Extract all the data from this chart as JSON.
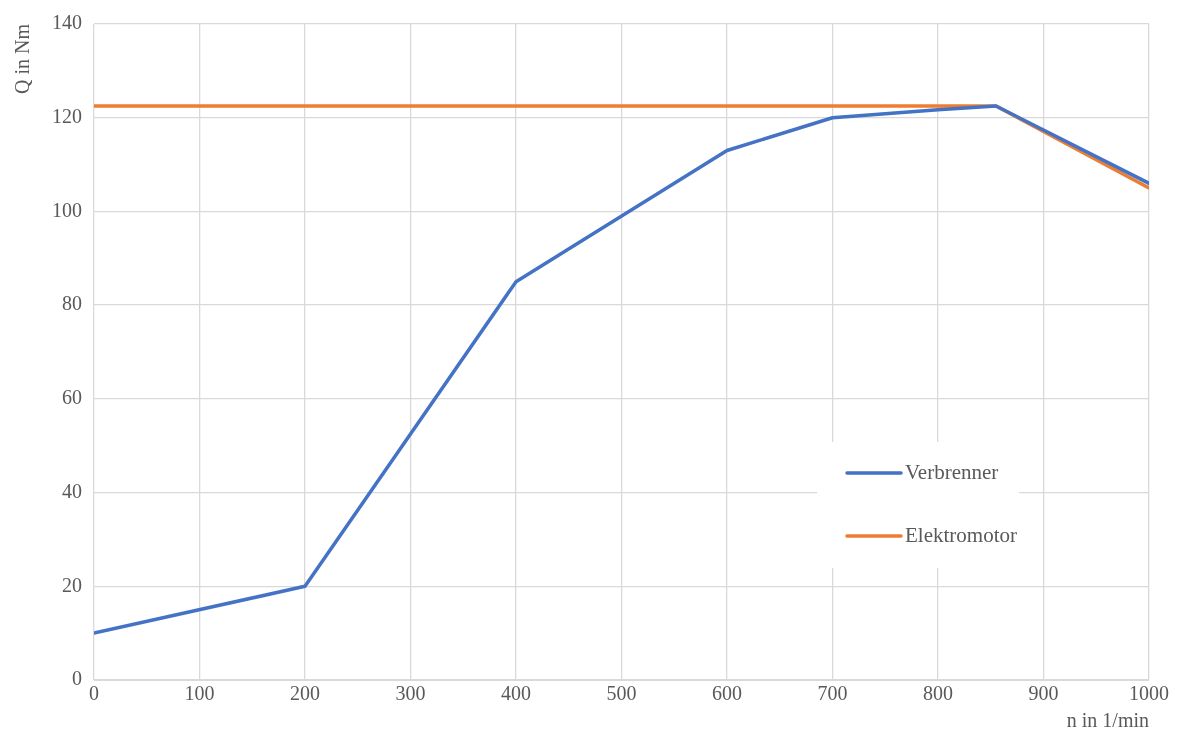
{
  "chart_data": {
    "type": "line",
    "xlabel": "n in 1/min",
    "ylabel": "Q in Nm",
    "xlim": [
      0,
      1000
    ],
    "xticks": [
      0,
      100,
      200,
      300,
      400,
      500,
      600,
      700,
      800,
      900,
      1000
    ],
    "ylim": [
      0,
      140
    ],
    "yticks": [
      0,
      20,
      40,
      60,
      80,
      100,
      120,
      140
    ],
    "grid": true,
    "legend": "center right",
    "marker": "none",
    "line_style": "solid",
    "series": [
      {
        "name": "Verbrenner",
        "color": "#4472c4",
        "x": [
          0,
          200,
          400,
          600,
          700,
          800,
          855,
          1000
        ],
        "values": [
          10,
          20,
          85,
          113,
          120,
          121.7,
          122.5,
          106
        ]
      },
      {
        "name": "Elektromotor",
        "color": "#ed7d31",
        "x": [
          0,
          855,
          1000
        ],
        "values": [
          122.5,
          122.5,
          105
        ]
      }
    ]
  }
}
